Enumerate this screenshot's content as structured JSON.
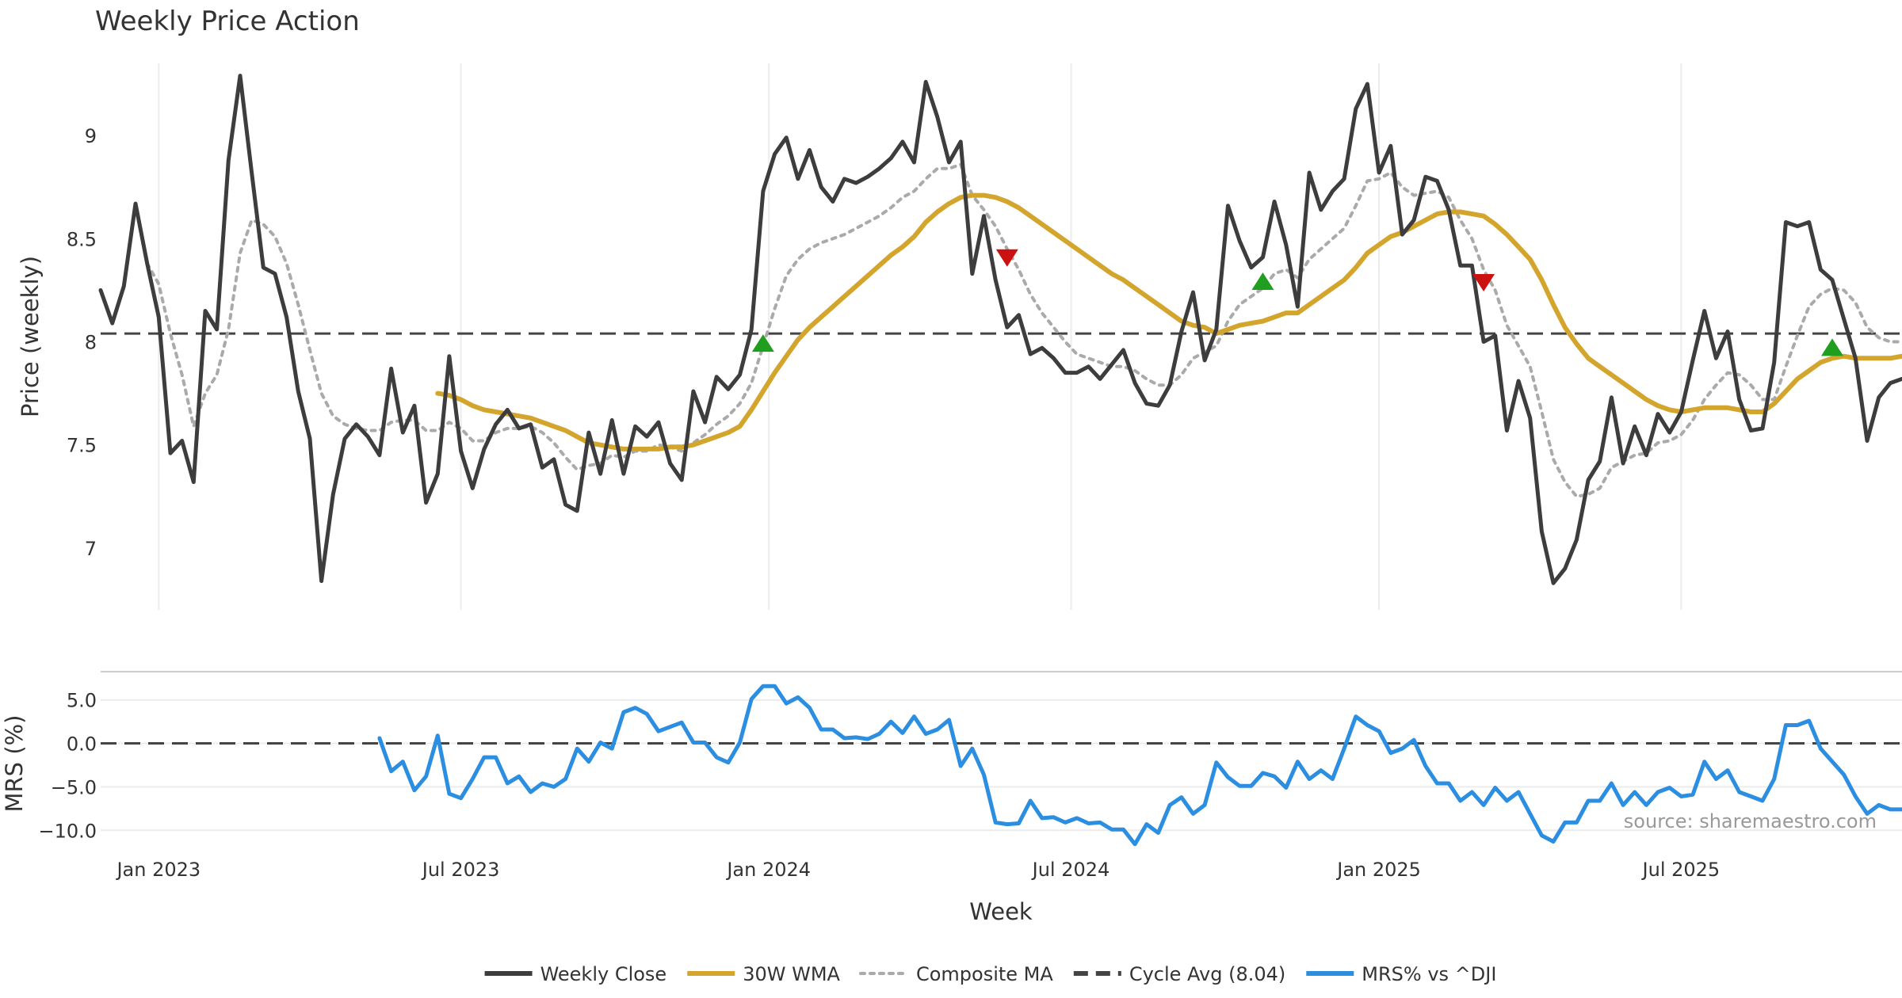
{
  "chart_data": {
    "type": "line",
    "title": "Weekly Price Action",
    "xlabel": "Week",
    "source_note": "source: sharemaestro.com",
    "x_range": [
      "2022-11-27",
      "2025-10-19"
    ],
    "x_ticks": [
      {
        "label": "Jan 2023",
        "week": 5
      },
      {
        "label": "Jul 2023",
        "week": 31
      },
      {
        "label": "Jan 2024",
        "week": 57.5
      },
      {
        "label": "Jul 2024",
        "week": 83.5
      },
      {
        "label": "Jan 2025",
        "week": 110
      },
      {
        "label": "Jul 2025",
        "week": 136
      }
    ],
    "price_panel": {
      "ylabel": "Price (weekly)",
      "ylim": [
        6.7,
        9.35
      ],
      "yticks": [
        7,
        7.5,
        8,
        8.5,
        9
      ],
      "ytick_labels": [
        "7",
        "7.5",
        "8",
        "8.5",
        "9"
      ],
      "cycle_avg": 8.04,
      "weekly_close": [
        8.25,
        8.09,
        8.27,
        8.67,
        8.38,
        8.12,
        7.46,
        7.52,
        7.32,
        8.15,
        8.06,
        8.88,
        9.29,
        8.82,
        8.36,
        8.33,
        8.12,
        7.76,
        7.53,
        6.84,
        7.26,
        7.53,
        7.6,
        7.54,
        7.45,
        7.87,
        7.56,
        7.69,
        7.22,
        7.36,
        7.93,
        7.47,
        7.29,
        7.48,
        7.6,
        7.67,
        7.58,
        7.6,
        7.39,
        7.43,
        7.21,
        7.18,
        7.56,
        7.36,
        7.62,
        7.36,
        7.59,
        7.54,
        7.61,
        7.41,
        7.33,
        7.76,
        7.61,
        7.83,
        7.77,
        7.84,
        8.06,
        8.73,
        8.91,
        8.99,
        8.79,
        8.93,
        8.75,
        8.68,
        8.79,
        8.77,
        8.8,
        8.84,
        8.89,
        8.97,
        8.87,
        9.26,
        9.09,
        8.87,
        8.97,
        8.33,
        8.61,
        8.3,
        8.07,
        8.13,
        7.94,
        7.97,
        7.92,
        7.85,
        7.85,
        7.88,
        7.82,
        7.89,
        7.96,
        7.8,
        7.7,
        7.69,
        7.79,
        8.05,
        8.24,
        7.91,
        8.06,
        8.66,
        8.49,
        8.36,
        8.41,
        8.68,
        8.47,
        8.17,
        8.82,
        8.64,
        8.73,
        8.79,
        9.13,
        9.25,
        8.82,
        8.95,
        8.52,
        8.59,
        8.8,
        8.78,
        8.64,
        8.37,
        8.37,
        8,
        8.03,
        7.57,
        7.81,
        7.63,
        7.08,
        6.83,
        6.9,
        7.04,
        7.33,
        7.42,
        7.73,
        7.41,
        7.59,
        7.45,
        7.65,
        7.56,
        7.66,
        7.91,
        8.15,
        7.92,
        8.05,
        7.72,
        7.57,
        7.58,
        7.9,
        8.58,
        8.56,
        8.58,
        8.35,
        8.3,
        8.11,
        7.92,
        7.52,
        7.73,
        7.8,
        7.82
      ],
      "wma_30": [
        null,
        null,
        null,
        null,
        null,
        null,
        null,
        null,
        null,
        null,
        null,
        null,
        null,
        null,
        null,
        null,
        null,
        null,
        null,
        null,
        null,
        null,
        null,
        null,
        null,
        null,
        null,
        null,
        null,
        7.75,
        7.74,
        7.72,
        7.69,
        7.67,
        7.66,
        7.65,
        7.64,
        7.63,
        7.61,
        7.59,
        7.57,
        7.54,
        7.51,
        7.5,
        7.49,
        7.48,
        7.48,
        7.48,
        7.48,
        7.49,
        7.49,
        7.5,
        7.52,
        7.54,
        7.56,
        7.59,
        7.67,
        7.76,
        7.85,
        7.93,
        8.01,
        8.07,
        8.12,
        8.17,
        8.22,
        8.27,
        8.32,
        8.37,
        8.42,
        8.46,
        8.51,
        8.58,
        8.63,
        8.67,
        8.7,
        8.71,
        8.71,
        8.7,
        8.68,
        8.65,
        8.61,
        8.57,
        8.53,
        8.49,
        8.45,
        8.41,
        8.37,
        8.33,
        8.3,
        8.26,
        8.22,
        8.18,
        8.14,
        8.1,
        8.08,
        8.07,
        8.04,
        8.06,
        8.08,
        8.09,
        8.1,
        8.12,
        8.14,
        8.14,
        8.18,
        8.22,
        8.26,
        8.3,
        8.36,
        8.43,
        8.47,
        8.51,
        8.53,
        8.56,
        8.59,
        8.62,
        8.63,
        8.63,
        8.62,
        8.61,
        8.57,
        8.52,
        8.46,
        8.4,
        8.3,
        8.18,
        8.07,
        7.99,
        7.92,
        7.88,
        7.84,
        7.8,
        7.76,
        7.72,
        7.69,
        7.67,
        7.66,
        7.67,
        7.68,
        7.68,
        7.68,
        7.67,
        7.66,
        7.66,
        7.7,
        7.76,
        7.82,
        7.86,
        7.9,
        7.92,
        7.93,
        7.92,
        7.92,
        7.92,
        7.92,
        7.93
      ],
      "composite_ma": [
        null,
        null,
        null,
        null,
        8.38,
        8.28,
        8.04,
        7.84,
        7.59,
        7.75,
        7.84,
        8.06,
        8.43,
        8.59,
        8.57,
        8.51,
        8.38,
        8.18,
        7.96,
        7.75,
        7.64,
        7.6,
        7.58,
        7.57,
        7.57,
        7.61,
        7.62,
        7.62,
        7.57,
        7.57,
        7.61,
        7.58,
        7.52,
        7.52,
        7.56,
        7.58,
        7.58,
        7.59,
        7.56,
        7.51,
        7.44,
        7.38,
        7.4,
        7.41,
        7.45,
        7.44,
        7.47,
        7.47,
        7.5,
        7.49,
        7.47,
        7.51,
        7.55,
        7.6,
        7.64,
        7.7,
        7.8,
        7.98,
        8.16,
        8.32,
        8.4,
        8.45,
        8.48,
        8.5,
        8.52,
        8.55,
        8.58,
        8.61,
        8.65,
        8.7,
        8.73,
        8.79,
        8.84,
        8.84,
        8.86,
        8.71,
        8.64,
        8.56,
        8.45,
        8.35,
        8.23,
        8.14,
        8.07,
        8.0,
        7.94,
        7.92,
        7.9,
        7.88,
        7.88,
        7.86,
        7.82,
        7.79,
        7.79,
        7.84,
        7.92,
        7.95,
        7.98,
        8.1,
        8.18,
        8.22,
        8.26,
        8.33,
        8.35,
        8.31,
        8.4,
        8.45,
        8.5,
        8.55,
        8.66,
        8.78,
        8.79,
        8.82,
        8.75,
        8.71,
        8.72,
        8.73,
        8.7,
        8.59,
        8.5,
        8.35,
        8.25,
        8.08,
        7.98,
        7.88,
        7.66,
        7.43,
        7.32,
        7.25,
        7.26,
        7.29,
        7.39,
        7.42,
        7.45,
        7.46,
        7.51,
        7.52,
        7.55,
        7.62,
        7.72,
        7.79,
        7.85,
        7.84,
        7.79,
        7.72,
        7.72,
        7.88,
        8.03,
        8.17,
        8.23,
        8.26,
        8.25,
        8.19,
        8.07,
        8.02,
        8.0,
        8.0
      ],
      "buy_signals": [
        {
          "week": 57,
          "value": 7.99
        },
        {
          "week": 100,
          "value": 8.29
        },
        {
          "week": 149,
          "value": 7.97
        }
      ],
      "sell_signals": [
        {
          "week": 78,
          "value": 8.41
        },
        {
          "week": 119,
          "value": 8.29
        }
      ]
    },
    "mrs_panel": {
      "ylabel": "MRS (%)",
      "ylim": [
        -11.8,
        7.8
      ],
      "yticks": [
        -10,
        -5,
        0,
        5
      ],
      "ytick_labels": [
        "−10.0",
        "−5.0",
        "0.0",
        "5.0"
      ],
      "mrs_start_week": 24,
      "mrs_values": [
        0.6,
        -3.2,
        -2.1,
        -5.4,
        -3.8,
        0.9,
        -5.8,
        -6.3,
        -4.1,
        -1.6,
        -1.6,
        -4.6,
        -3.8,
        -5.6,
        -4.6,
        -5.0,
        -4.1,
        -0.6,
        -2.1,
        0.1,
        -0.6,
        3.6,
        4.1,
        3.4,
        1.4,
        1.9,
        2.4,
        0.1,
        0.1,
        -1.6,
        -2.2,
        0.1,
        5.1,
        6.6,
        6.6,
        4.6,
        5.3,
        4.1,
        1.6,
        1.6,
        0.6,
        0.7,
        0.5,
        1.1,
        2.5,
        1.2,
        3.1,
        1.1,
        1.6,
        2.7,
        -2.6,
        -0.6,
        -3.6,
        -9.1,
        -9.3,
        -9.2,
        -6.6,
        -8.6,
        -8.5,
        -9.1,
        -8.6,
        -9.2,
        -9.1,
        -9.9,
        -9.9,
        -11.6,
        -9.3,
        -10.3,
        -7.1,
        -6.2,
        -8.1,
        -7.1,
        -2.2,
        -3.9,
        -4.9,
        -4.9,
        -3.4,
        -3.8,
        -5.1,
        -2.1,
        -4.1,
        -3.1,
        -4.1,
        -0.6,
        3.1,
        2.1,
        1.4,
        -1.1,
        -0.6,
        0.4,
        -2.6,
        -4.6,
        -4.6,
        -6.6,
        -5.6,
        -7.1,
        -5.1,
        -6.6,
        -5.6,
        -8.1,
        -10.6,
        -11.3,
        -9.1,
        -9.1,
        -6.6,
        -6.6,
        -4.6,
        -7.1,
        -5.6,
        -7.1,
        -5.6,
        -5.1,
        -6.1,
        -5.9,
        -2.1,
        -4.1,
        -3.1,
        -5.6,
        -6.1,
        -6.6,
        -4.1,
        2.1,
        2.1,
        2.6,
        -0.6,
        -2.1,
        -3.6,
        -6.1,
        -8.1,
        -7.1,
        -7.6,
        -7.6
      ]
    },
    "legend": [
      {
        "label": "Weekly Close",
        "color": "#3d3d3d",
        "style": "solid"
      },
      {
        "label": "30W WMA",
        "color": "#d4a52c",
        "style": "solid"
      },
      {
        "label": "Composite MA",
        "color": "#aaaaaa",
        "style": "dotted"
      },
      {
        "label": "Cycle Avg (8.04)",
        "color": "#444444",
        "style": "dashed"
      },
      {
        "label": "MRS% vs ^DJI",
        "color": "#2b8ee0",
        "style": "solid"
      }
    ],
    "colors": {
      "close": "#3d3d3d",
      "wma": "#d4a52c",
      "composite": "#aaaaaa",
      "cycle": "#444444",
      "mrs": "#2b8ee0",
      "buy": "#1f9e1f",
      "sell": "#cc1111"
    }
  }
}
